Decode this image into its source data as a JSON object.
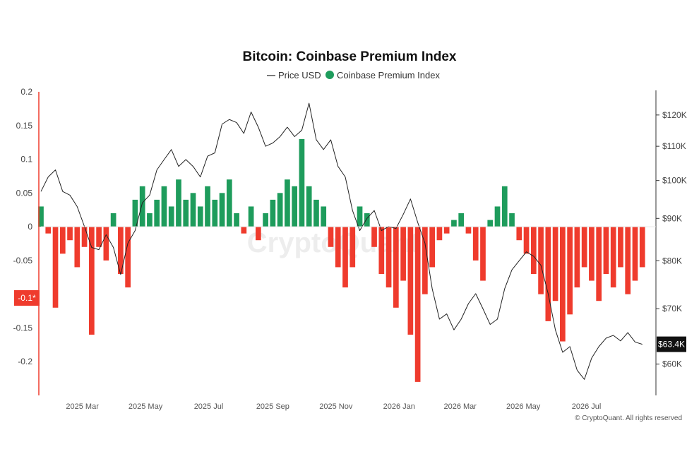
{
  "chart_data": {
    "type": "bar+line",
    "title": "Bitcoin: Coinbase Premium Index",
    "legend": [
      {
        "name": "Price USD",
        "color": "#222222",
        "marker": "line"
      },
      {
        "name": "Coinbase Premium Index",
        "color": "#1e9c5c",
        "marker": "dot"
      }
    ],
    "legend_placement": "top-center",
    "colors": {
      "positive": "#1e9c5c",
      "negative": "#ef3b2d",
      "price": "#222222",
      "left_axis": "#ef3b2d",
      "badge_bg": "#111111",
      "crosshair_badge": "#ef3b2d"
    },
    "x_ticks": [
      "2025 Mar",
      "2025 May",
      "2025 Jul",
      "2025 Sep",
      "2025 Nov",
      "2026 Jan",
      "2026 Mar",
      "2026 May",
      "2026 Jul"
    ],
    "x_range": [
      "2025-01-20",
      "2026-08-31"
    ],
    "y_left": {
      "ticks": [
        "0.2",
        "0.15",
        "0.1",
        "0.05",
        "0",
        "-0.05",
        "-0.1",
        "-0.15",
        "-0.2"
      ],
      "range": [
        -0.25,
        0.2
      ]
    },
    "y_right": {
      "ticks": [
        "$120K",
        "$110K",
        "$100K",
        "$90K",
        "$80K",
        "$70K",
        "$60K"
      ],
      "range": [
        55000,
        128000
      ],
      "scale": "log"
    },
    "crosshair_label": "-0.1*",
    "last_price_label": "$63.4K",
    "watermark": "CryptoQuant",
    "credit": "© CryptoQuant. All rights reserved",
    "premium_series": [
      [
        "2025-01-20",
        0.03
      ],
      [
        "2025-01-27",
        -0.01
      ],
      [
        "2025-02-03",
        -0.12
      ],
      [
        "2025-02-10",
        -0.04
      ],
      [
        "2025-02-17",
        -0.02
      ],
      [
        "2025-02-24",
        -0.06
      ],
      [
        "2025-03-03",
        -0.03
      ],
      [
        "2025-03-10",
        -0.16
      ],
      [
        "2025-03-17",
        -0.03
      ],
      [
        "2025-03-24",
        -0.05
      ],
      [
        "2025-03-31",
        0.02
      ],
      [
        "2025-04-07",
        -0.07
      ],
      [
        "2025-04-14",
        -0.09
      ],
      [
        "2025-04-21",
        0.04
      ],
      [
        "2025-04-28",
        0.06
      ],
      [
        "2025-05-05",
        0.02
      ],
      [
        "2025-05-12",
        0.04
      ],
      [
        "2025-05-19",
        0.06
      ],
      [
        "2025-05-26",
        0.03
      ],
      [
        "2025-06-02",
        0.07
      ],
      [
        "2025-06-09",
        0.04
      ],
      [
        "2025-06-16",
        0.05
      ],
      [
        "2025-06-23",
        0.03
      ],
      [
        "2025-06-30",
        0.06
      ],
      [
        "2025-07-07",
        0.04
      ],
      [
        "2025-07-14",
        0.05
      ],
      [
        "2025-07-21",
        0.07
      ],
      [
        "2025-07-28",
        0.02
      ],
      [
        "2025-08-04",
        -0.01
      ],
      [
        "2025-08-11",
        0.03
      ],
      [
        "2025-08-18",
        -0.02
      ],
      [
        "2025-08-25",
        0.02
      ],
      [
        "2025-09-01",
        0.04
      ],
      [
        "2025-09-08",
        0.05
      ],
      [
        "2025-09-15",
        0.07
      ],
      [
        "2025-09-22",
        0.06
      ],
      [
        "2025-09-29",
        0.13
      ],
      [
        "2025-10-06",
        0.06
      ],
      [
        "2025-10-13",
        0.04
      ],
      [
        "2025-10-20",
        0.03
      ],
      [
        "2025-10-27",
        -0.03
      ],
      [
        "2025-11-03",
        -0.06
      ],
      [
        "2025-11-10",
        -0.09
      ],
      [
        "2025-11-17",
        -0.06
      ],
      [
        "2025-11-24",
        0.03
      ],
      [
        "2025-12-01",
        0.02
      ],
      [
        "2025-12-08",
        -0.03
      ],
      [
        "2025-12-15",
        -0.07
      ],
      [
        "2025-12-22",
        -0.09
      ],
      [
        "2025-12-29",
        -0.12
      ],
      [
        "2026-01-05",
        -0.08
      ],
      [
        "2026-01-12",
        -0.16
      ],
      [
        "2026-01-19",
        -0.23
      ],
      [
        "2026-01-26",
        -0.1
      ],
      [
        "2026-02-02",
        -0.06
      ],
      [
        "2026-02-09",
        -0.02
      ],
      [
        "2026-02-16",
        -0.01
      ],
      [
        "2026-02-23",
        0.01
      ],
      [
        "2026-03-02",
        0.02
      ],
      [
        "2026-03-09",
        -0.01
      ],
      [
        "2026-03-16",
        -0.05
      ],
      [
        "2026-03-23",
        -0.08
      ],
      [
        "2026-03-30",
        0.01
      ],
      [
        "2026-04-06",
        0.03
      ],
      [
        "2026-04-13",
        0.06
      ],
      [
        "2026-04-20",
        0.02
      ],
      [
        "2026-04-27",
        -0.02
      ],
      [
        "2026-05-04",
        -0.04
      ],
      [
        "2026-05-11",
        -0.07
      ],
      [
        "2026-05-18",
        -0.1
      ],
      [
        "2026-05-25",
        -0.14
      ],
      [
        "2026-06-01",
        -0.11
      ],
      [
        "2026-06-08",
        -0.17
      ],
      [
        "2026-06-15",
        -0.13
      ],
      [
        "2026-06-22",
        -0.09
      ],
      [
        "2026-06-29",
        -0.06
      ],
      [
        "2026-07-06",
        -0.08
      ],
      [
        "2026-07-13",
        -0.11
      ],
      [
        "2026-07-20",
        -0.07
      ],
      [
        "2026-07-27",
        -0.09
      ],
      [
        "2026-08-03",
        -0.06
      ],
      [
        "2026-08-10",
        -0.1
      ],
      [
        "2026-08-17",
        -0.08
      ],
      [
        "2026-08-24",
        -0.06
      ]
    ],
    "price_series": [
      [
        "2025-01-20",
        97000
      ],
      [
        "2025-01-27",
        101000
      ],
      [
        "2025-02-03",
        103000
      ],
      [
        "2025-02-10",
        97000
      ],
      [
        "2025-02-17",
        96000
      ],
      [
        "2025-02-24",
        93000
      ],
      [
        "2025-03-03",
        88000
      ],
      [
        "2025-03-10",
        83000
      ],
      [
        "2025-03-17",
        82500
      ],
      [
        "2025-03-24",
        86000
      ],
      [
        "2025-03-31",
        83000
      ],
      [
        "2025-04-07",
        77000
      ],
      [
        "2025-04-14",
        84000
      ],
      [
        "2025-04-21",
        87000
      ],
      [
        "2025-04-28",
        94000
      ],
      [
        "2025-05-05",
        96000
      ],
      [
        "2025-05-12",
        103000
      ],
      [
        "2025-05-19",
        106000
      ],
      [
        "2025-05-26",
        109000
      ],
      [
        "2025-06-02",
        104000
      ],
      [
        "2025-06-09",
        106000
      ],
      [
        "2025-06-16",
        104000
      ],
      [
        "2025-06-23",
        101000
      ],
      [
        "2025-06-30",
        107000
      ],
      [
        "2025-07-07",
        108000
      ],
      [
        "2025-07-14",
        117000
      ],
      [
        "2025-07-21",
        118500
      ],
      [
        "2025-07-28",
        117500
      ],
      [
        "2025-08-04",
        114000
      ],
      [
        "2025-08-11",
        121000
      ],
      [
        "2025-08-18",
        116000
      ],
      [
        "2025-08-25",
        110000
      ],
      [
        "2025-09-01",
        111000
      ],
      [
        "2025-09-08",
        113000
      ],
      [
        "2025-09-15",
        116000
      ],
      [
        "2025-09-22",
        113000
      ],
      [
        "2025-09-29",
        115000
      ],
      [
        "2025-10-06",
        124000
      ],
      [
        "2025-10-13",
        112000
      ],
      [
        "2025-10-20",
        109000
      ],
      [
        "2025-10-27",
        112000
      ],
      [
        "2025-11-03",
        104000
      ],
      [
        "2025-11-10",
        101000
      ],
      [
        "2025-11-17",
        92000
      ],
      [
        "2025-11-24",
        87000
      ],
      [
        "2025-12-01",
        90000
      ],
      [
        "2025-12-08",
        92000
      ],
      [
        "2025-12-15",
        87000
      ],
      [
        "2025-12-22",
        88000
      ],
      [
        "2025-12-29",
        87500
      ],
      [
        "2026-01-05",
        91000
      ],
      [
        "2026-01-12",
        95000
      ],
      [
        "2026-01-19",
        89000
      ],
      [
        "2026-01-26",
        84000
      ],
      [
        "2026-02-02",
        74000
      ],
      [
        "2026-02-09",
        68000
      ],
      [
        "2026-02-16",
        69000
      ],
      [
        "2026-02-23",
        66000
      ],
      [
        "2026-03-02",
        68000
      ],
      [
        "2026-03-09",
        71000
      ],
      [
        "2026-03-16",
        73000
      ],
      [
        "2026-03-23",
        70000
      ],
      [
        "2026-03-30",
        67000
      ],
      [
        "2026-04-06",
        68000
      ],
      [
        "2026-04-13",
        74000
      ],
      [
        "2026-04-20",
        78000
      ],
      [
        "2026-04-27",
        80000
      ],
      [
        "2026-05-04",
        82000
      ],
      [
        "2026-05-11",
        81000
      ],
      [
        "2026-05-18",
        79000
      ],
      [
        "2026-05-25",
        73000
      ],
      [
        "2026-06-01",
        66000
      ],
      [
        "2026-06-08",
        62000
      ],
      [
        "2026-06-15",
        63000
      ],
      [
        "2026-06-22",
        59000
      ],
      [
        "2026-06-29",
        57500
      ],
      [
        "2026-07-06",
        61000
      ],
      [
        "2026-07-13",
        63000
      ],
      [
        "2026-07-20",
        64500
      ],
      [
        "2026-07-27",
        65000
      ],
      [
        "2026-08-03",
        64000
      ],
      [
        "2026-08-10",
        65500
      ],
      [
        "2026-08-17",
        63800
      ],
      [
        "2026-08-24",
        63400
      ]
    ]
  }
}
